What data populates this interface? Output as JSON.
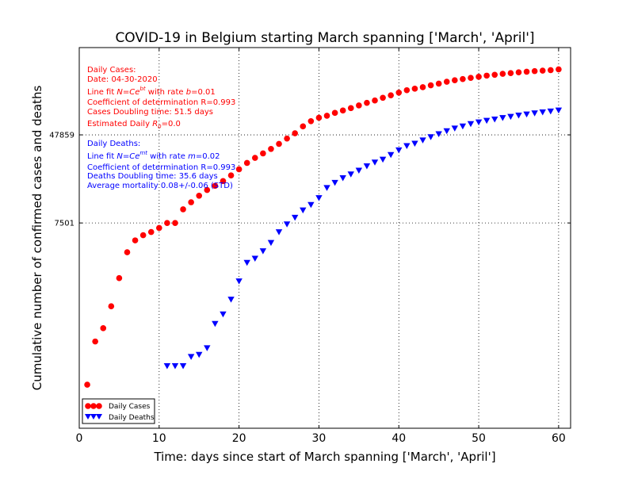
{
  "chart_data": {
    "type": "scatter",
    "title": "COVID-19 in Belgium starting March spanning ['March', 'April']",
    "xlabel": "Time: days since start of March spanning ['March', 'April']",
    "ylabel": "Cumulative number of confirmed cases and deaths",
    "xlim": [
      0,
      61.5
    ],
    "x_ticks": [
      0,
      10,
      20,
      30,
      40,
      50,
      60
    ],
    "y_scale": "log",
    "ylim": [
      100,
      300000
    ],
    "y_ticks": [
      7501,
      47859
    ],
    "y_tick_labels": [
      "7501",
      "47859"
    ],
    "grid": "dotted",
    "legend_placement": "lower-left",
    "series": [
      {
        "name": "Daily Cases",
        "color": "#ff0000",
        "marker": "circle",
        "x": [
          1,
          2,
          3,
          4,
          5,
          6,
          7,
          8,
          9,
          10,
          11,
          12,
          13,
          14,
          15,
          16,
          17,
          18,
          19,
          20,
          21,
          22,
          23,
          24,
          25,
          26,
          27,
          28,
          29,
          30,
          31,
          32,
          33,
          34,
          35,
          36,
          37,
          38,
          39,
          40,
          41,
          42,
          43,
          44,
          45,
          46,
          47,
          48,
          49,
          50,
          51,
          52,
          53,
          54,
          55,
          56,
          57,
          58,
          59,
          60
        ],
        "y": [
          250,
          620,
          820,
          1300,
          2350,
          4050,
          5200,
          5800,
          6200,
          6750,
          7500,
          7500,
          10000,
          11600,
          13300,
          15000,
          16400,
          18100,
          20400,
          23200,
          26500,
          29500,
          32400,
          35600,
          39600,
          44300,
          49500,
          57200,
          63800,
          68600,
          71600,
          76000,
          79900,
          84000,
          88900,
          93800,
          98600,
          104400,
          110000,
          116300,
          122400,
          126400,
          130400,
          135700,
          140600,
          146300,
          150800,
          154800,
          158700,
          162300,
          166300,
          169300,
          172800,
          175300,
          178300,
          180700,
          183000,
          184800,
          186600,
          189800
        ]
      },
      {
        "name": "Daily Deaths",
        "color": "#0000ff",
        "marker": "triangle-down",
        "x": [
          11,
          12,
          13,
          14,
          15,
          16,
          17,
          18,
          19,
          20,
          21,
          22,
          23,
          24,
          25,
          26,
          27,
          28,
          29,
          30,
          31,
          32,
          33,
          34,
          35,
          36,
          37,
          38,
          39,
          40,
          41,
          42,
          43,
          44,
          45,
          46,
          47,
          48,
          49,
          50,
          51,
          52,
          53,
          54,
          55,
          56,
          57,
          58,
          59,
          60
        ],
        "y": [
          370,
          370,
          370,
          450,
          470,
          540,
          900,
          1100,
          1500,
          2200,
          3250,
          3550,
          4150,
          4950,
          6200,
          7300,
          8400,
          9800,
          11000,
          12700,
          15700,
          17500,
          19300,
          20900,
          22600,
          24800,
          26800,
          28500,
          31400,
          34700,
          37900,
          39900,
          42700,
          45700,
          48700,
          51800,
          54800,
          57300,
          60300,
          62400,
          64500,
          66300,
          68400,
          70200,
          72000,
          73800,
          75500,
          77100,
          78500,
          80200
        ]
      }
    ]
  },
  "annotations": {
    "cases": {
      "heading": "Daily Cases:",
      "date": "Date: 04-30-2020",
      "fit_prefix": "Line fit ",
      "fit_formula": "N=Ce",
      "fit_formula_sup": "bt",
      "fit_rate_text": " with rate ",
      "fit_rate_var": "b",
      "fit_rate_value": "=0.01",
      "r_line": "Coefficient of determination R=0.993",
      "doubling": "Cases Doubling time: 51.5 days",
      "r0_prefix": "Estimated Daily ",
      "r0_var": "R",
      "r0_sub": "0",
      "r0_value": "=0.0"
    },
    "deaths": {
      "heading": "Daily Deaths:",
      "fit_prefix": "Line fit ",
      "fit_formula": "N=Ce",
      "fit_formula_sup": "mt",
      "fit_rate_text": " with rate ",
      "fit_rate_var": "m",
      "fit_rate_value": "=0.02",
      "r_line": "Coefficient of determination R=0.993",
      "doubling": "Deaths Doubling time: 35.6 days",
      "mortality": "Average mortality 0.08+/-0.06 (STD)"
    }
  }
}
